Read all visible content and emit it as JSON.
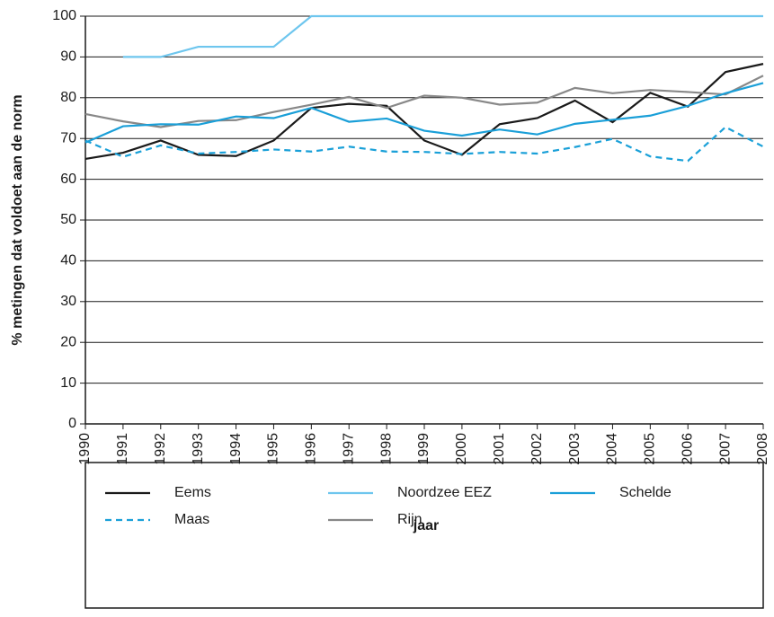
{
  "chart_data": {
    "type": "line",
    "xlabel": "jaar",
    "ylabel": "% metingen dat voldoet aan de norm",
    "x": [
      1990,
      1991,
      1992,
      1993,
      1994,
      1995,
      1996,
      1997,
      1998,
      1999,
      2000,
      2001,
      2002,
      2003,
      2004,
      2005,
      2006,
      2007,
      2008
    ],
    "xlim": [
      1990,
      2008
    ],
    "xticks": [
      1990,
      1991,
      1992,
      1993,
      1994,
      1995,
      1996,
      1997,
      1998,
      1999,
      2000,
      2001,
      2002,
      2003,
      2004,
      2005,
      2006,
      2007,
      2008
    ],
    "ylim": [
      0,
      100
    ],
    "yticks": [
      0,
      10,
      20,
      30,
      40,
      50,
      60,
      70,
      80,
      90,
      100
    ],
    "grid": true,
    "legend": "bottom",
    "series": [
      {
        "name": "Eems",
        "color": "#1a1a1a",
        "style": "solid",
        "values": [
          65,
          66.5,
          69.5,
          66,
          65.7,
          69.5,
          77.5,
          78.5,
          78,
          69.5,
          66,
          73.5,
          75,
          79.3,
          74,
          81.2,
          77.8,
          86.3,
          88.3
        ]
      },
      {
        "name": "Maas",
        "color": "#1aa0d8",
        "style": "dashed",
        "values": [
          69.5,
          65.5,
          68.3,
          66.3,
          66.7,
          67.3,
          66.8,
          68,
          66.8,
          66.7,
          66.2,
          66.7,
          66.3,
          67.9,
          69.9,
          65.6,
          64.5,
          72.8,
          68
        ]
      },
      {
        "name": "Noordzee EEZ",
        "color": "#6ec6ee",
        "style": "solid",
        "values": [
          null,
          90,
          90,
          92.5,
          92.5,
          92.5,
          100,
          100,
          100,
          100,
          100,
          100,
          100,
          100,
          100,
          100,
          100,
          100,
          100
        ]
      },
      {
        "name": "Rijn",
        "color": "#888888",
        "style": "solid",
        "values": [
          76,
          74.2,
          72.8,
          74.3,
          74.5,
          76.5,
          78.3,
          80.2,
          77.5,
          80.5,
          80,
          78.3,
          78.8,
          82.4,
          81.1,
          81.9,
          81.4,
          80.8,
          85.4
        ]
      },
      {
        "name": "Schelde",
        "color": "#1a9fd8",
        "style": "solid",
        "values": [
          69,
          73,
          73.5,
          73.4,
          75.4,
          75,
          77.5,
          74.1,
          74.9,
          71.9,
          70.7,
          72.2,
          71,
          73.6,
          74.6,
          75.6,
          78,
          81.1,
          83.6
        ]
      }
    ]
  }
}
